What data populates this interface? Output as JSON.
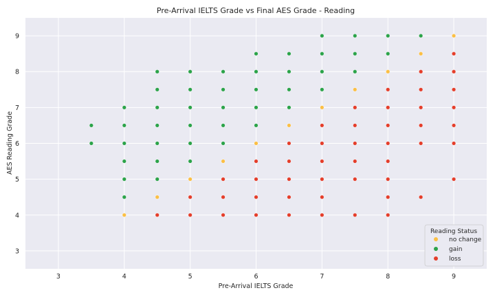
{
  "chart_data": {
    "type": "scatter",
    "title": "Pre-Arrival IELTS Grade vs Final AES Grade - Reading",
    "xlabel": "Pre-Arrival IELTS Grade",
    "ylabel": "AES Reading Grade",
    "xlim": [
      2.5,
      9.5
    ],
    "ylim": [
      2.5,
      9.5
    ],
    "xticks": [
      "3",
      "4",
      "5",
      "6",
      "7",
      "8",
      "9"
    ],
    "yticks": [
      "3",
      "4",
      "5",
      "6",
      "7",
      "8",
      "9"
    ],
    "grid": true,
    "legend": {
      "title": "Reading Status",
      "placement": "bottom-right",
      "entries": [
        "no change",
        "gain",
        "loss"
      ]
    },
    "colors": {
      "no change": "#fbbf45",
      "gain": "#2ca34a",
      "loss": "#e43e2b",
      "background": "#eaeaf2"
    },
    "series": [
      {
        "name": "no change",
        "points": [
          [
            4,
            4
          ],
          [
            4.5,
            4.5
          ],
          [
            5,
            5
          ],
          [
            5.5,
            5.5
          ],
          [
            6,
            6
          ],
          [
            6.5,
            6.5
          ],
          [
            7,
            7
          ],
          [
            7.5,
            7.5
          ],
          [
            8,
            8
          ],
          [
            8.5,
            8.5
          ],
          [
            9,
            9
          ]
        ]
      },
      {
        "name": "gain",
        "points": [
          [
            3.5,
            6
          ],
          [
            3.5,
            6.5
          ],
          [
            4,
            4.5
          ],
          [
            4,
            5
          ],
          [
            4,
            5.5
          ],
          [
            4,
            6
          ],
          [
            4,
            6.5
          ],
          [
            4,
            7
          ],
          [
            4.5,
            5
          ],
          [
            4.5,
            5.5
          ],
          [
            4.5,
            6
          ],
          [
            4.5,
            6.5
          ],
          [
            4.5,
            7
          ],
          [
            4.5,
            7.5
          ],
          [
            4.5,
            8
          ],
          [
            5,
            5.5
          ],
          [
            5,
            6
          ],
          [
            5,
            6.5
          ],
          [
            5,
            7
          ],
          [
            5,
            7.5
          ],
          [
            5,
            8
          ],
          [
            5.5,
            6
          ],
          [
            5.5,
            6.5
          ],
          [
            5.5,
            7
          ],
          [
            5.5,
            7.5
          ],
          [
            5.5,
            8
          ],
          [
            6,
            6.5
          ],
          [
            6,
            7
          ],
          [
            6,
            7.5
          ],
          [
            6,
            8
          ],
          [
            6,
            8.5
          ],
          [
            6.5,
            7
          ],
          [
            6.5,
            7.5
          ],
          [
            6.5,
            8
          ],
          [
            6.5,
            8.5
          ],
          [
            7,
            7.5
          ],
          [
            7,
            8
          ],
          [
            7,
            8.5
          ],
          [
            7,
            9
          ],
          [
            7.5,
            8
          ],
          [
            7.5,
            8.5
          ],
          [
            7.5,
            9
          ],
          [
            8,
            8.5
          ],
          [
            8,
            9
          ],
          [
            8.5,
            9
          ]
        ]
      },
      {
        "name": "loss",
        "points": [
          [
            4.5,
            4
          ],
          [
            5,
            4
          ],
          [
            5,
            4.5
          ],
          [
            5.5,
            4
          ],
          [
            5.5,
            4.5
          ],
          [
            5.5,
            5
          ],
          [
            6,
            4
          ],
          [
            6,
            4.5
          ],
          [
            6,
            5
          ],
          [
            6,
            5.5
          ],
          [
            6.5,
            4
          ],
          [
            6.5,
            4.5
          ],
          [
            6.5,
            5
          ],
          [
            6.5,
            5.5
          ],
          [
            6.5,
            6
          ],
          [
            7,
            4
          ],
          [
            7,
            4.5
          ],
          [
            7,
            5
          ],
          [
            7,
            5.5
          ],
          [
            7,
            6
          ],
          [
            7,
            6.5
          ],
          [
            7.5,
            4
          ],
          [
            7.5,
            5
          ],
          [
            7.5,
            5.5
          ],
          [
            7.5,
            6
          ],
          [
            7.5,
            6.5
          ],
          [
            7.5,
            7
          ],
          [
            8,
            4
          ],
          [
            8,
            4.5
          ],
          [
            8,
            5
          ],
          [
            8,
            5.5
          ],
          [
            8,
            6
          ],
          [
            8,
            6.5
          ],
          [
            8,
            7
          ],
          [
            8,
            7.5
          ],
          [
            8.5,
            4.5
          ],
          [
            8.5,
            6
          ],
          [
            8.5,
            6.5
          ],
          [
            8.5,
            7
          ],
          [
            8.5,
            7.5
          ],
          [
            8.5,
            8
          ],
          [
            9,
            5
          ],
          [
            9,
            6
          ],
          [
            9,
            6.5
          ],
          [
            9,
            7
          ],
          [
            9,
            7.5
          ],
          [
            9,
            8
          ],
          [
            9,
            8.5
          ]
        ]
      }
    ]
  }
}
